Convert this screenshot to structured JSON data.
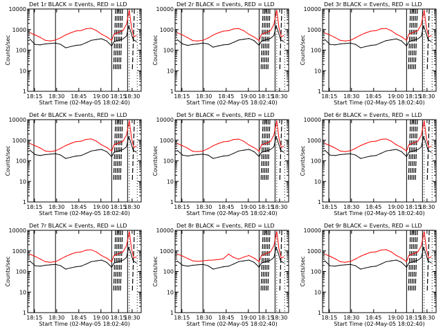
{
  "chart_data": [
    {
      "type": "line",
      "title": "Det 1r  BLACK = Events, RED = LLD",
      "xlabel": "Start Time (02-May-05 18:02:40)",
      "ylabel": "Counts/sec",
      "y_scale": "log",
      "ylim": [
        1,
        10000
      ],
      "yticks": [
        "1",
        "10",
        "100",
        "1000",
        "10000"
      ],
      "xticks": [
        "18:15",
        "18:30",
        "18:45",
        "19:00",
        "18:15",
        "18:30"
      ],
      "series": [
        {
          "name": "BLACK = Events",
          "color": "#000000",
          "x": [
            "18:02",
            "18:06",
            "18:10",
            "18:14",
            "18:18",
            "18:22",
            "18:26",
            "18:30",
            "18:34",
            "18:38",
            "18:42",
            "18:46",
            "18:50",
            "18:54",
            "18:58",
            "19:02",
            "19:06"
          ],
          "y": [
            340,
            190,
            180,
            200,
            210,
            220,
            190,
            130,
            150,
            170,
            180,
            230,
            300,
            330,
            360,
            280,
            160
          ]
        },
        {
          "name": "RED = LLD",
          "color": "#ff0000",
          "x": [
            "18:02",
            "18:06",
            "18:10",
            "18:14",
            "18:18",
            "18:22",
            "18:26",
            "18:30",
            "18:34",
            "18:38",
            "18:42",
            "18:46",
            "18:50",
            "18:54",
            "18:58",
            "19:02",
            "19:06"
          ],
          "y": [
            700,
            550,
            420,
            300,
            280,
            310,
            400,
            550,
            700,
            850,
            900,
            1100,
            1150,
            900,
            600,
            450,
            300
          ]
        }
      ]
    },
    {
      "type": "line",
      "title": "Det 2r  BLACK = Events, RED = LLD",
      "xlabel": "Start Time (02-May-05 18:02:40)",
      "ylabel": "Counts/sec",
      "y_scale": "log",
      "ylim": [
        1,
        10000
      ],
      "yticks": [
        "1",
        "10",
        "100",
        "1000",
        "10000"
      ],
      "xticks": [
        "18:15",
        "18:30",
        "18:45",
        "19:00",
        "18:15",
        "18:30"
      ],
      "series": [
        {
          "name": "BLACK = Events",
          "color": "#000000",
          "x": [
            "18:02",
            "18:06",
            "18:10",
            "18:14",
            "18:18",
            "18:22",
            "18:26",
            "18:30",
            "18:34",
            "18:38",
            "18:42",
            "18:46",
            "18:50",
            "18:54",
            "18:58",
            "19:02",
            "19:06"
          ],
          "y": [
            320,
            200,
            170,
            190,
            200,
            220,
            200,
            140,
            160,
            180,
            190,
            240,
            310,
            340,
            370,
            290,
            170
          ]
        },
        {
          "name": "RED = LLD",
          "color": "#ff0000",
          "x": [
            "18:02",
            "18:06",
            "18:10",
            "18:14",
            "18:18",
            "18:22",
            "18:26",
            "18:30",
            "18:34",
            "18:38",
            "18:42",
            "18:46",
            "18:50",
            "18:54",
            "18:58",
            "19:02",
            "19:06"
          ],
          "y": [
            700,
            540,
            410,
            290,
            280,
            300,
            390,
            540,
            690,
            840,
            880,
            1080,
            1120,
            880,
            590,
            440,
            290
          ]
        }
      ]
    },
    {
      "type": "line",
      "title": "Det 3r  BLACK = Events, RED = LLD",
      "xlabel": "Start Time (02-May-05 18:02:40)",
      "ylabel": "Counts/sec",
      "y_scale": "log",
      "ylim": [
        1,
        10000
      ],
      "yticks": [
        "1",
        "10",
        "100",
        "1000",
        "10000"
      ],
      "xticks": [
        "18:15",
        "18:30",
        "18:45",
        "19:00",
        "18:15",
        "18:30"
      ],
      "series": [
        {
          "name": "BLACK = Events",
          "color": "#000000",
          "x": [
            "18:02",
            "18:06",
            "18:10",
            "18:14",
            "18:18",
            "18:22",
            "18:26",
            "18:30",
            "18:34",
            "18:38",
            "18:42",
            "18:46",
            "18:50",
            "18:54",
            "18:58",
            "19:02",
            "19:06"
          ],
          "y": [
            330,
            190,
            180,
            200,
            210,
            220,
            190,
            130,
            150,
            170,
            180,
            230,
            290,
            320,
            350,
            280,
            160
          ]
        },
        {
          "name": "RED = LLD",
          "color": "#ff0000",
          "x": [
            "18:02",
            "18:06",
            "18:10",
            "18:14",
            "18:18",
            "18:22",
            "18:26",
            "18:30",
            "18:34",
            "18:38",
            "18:42",
            "18:46",
            "18:50",
            "18:54",
            "18:58",
            "19:02",
            "19:06"
          ],
          "y": [
            680,
            540,
            410,
            300,
            280,
            300,
            400,
            540,
            690,
            840,
            890,
            1090,
            1140,
            890,
            600,
            450,
            300
          ]
        }
      ]
    },
    {
      "type": "line",
      "title": "Det 4r  BLACK = Events, RED = LLD",
      "xlabel": "Start Time (02-May-05 18:02:40)",
      "ylabel": "Counts/sec",
      "y_scale": "log",
      "ylim": [
        1,
        10000
      ],
      "yticks": [
        "1",
        "10",
        "100",
        "1000",
        "10000"
      ],
      "xticks": [
        "18:15",
        "18:30",
        "18:45",
        "19:00",
        "18:15",
        "18:30"
      ],
      "series": [
        {
          "name": "BLACK = Events",
          "color": "#000000",
          "x": [
            "18:02",
            "18:06",
            "18:10",
            "18:14",
            "18:18",
            "18:22",
            "18:26",
            "18:30",
            "18:34",
            "18:38",
            "18:42",
            "18:46",
            "18:50",
            "18:54",
            "18:58",
            "19:02",
            "19:06"
          ],
          "y": [
            330,
            200,
            180,
            200,
            210,
            220,
            190,
            130,
            150,
            170,
            180,
            230,
            300,
            330,
            360,
            280,
            160
          ]
        },
        {
          "name": "RED = LLD",
          "color": "#ff0000",
          "x": [
            "18:02",
            "18:06",
            "18:10",
            "18:14",
            "18:18",
            "18:22",
            "18:26",
            "18:30",
            "18:34",
            "18:38",
            "18:42",
            "18:46",
            "18:50",
            "18:54",
            "18:58",
            "19:02",
            "19:06"
          ],
          "y": [
            700,
            540,
            420,
            300,
            280,
            310,
            400,
            550,
            700,
            850,
            900,
            1100,
            1150,
            900,
            600,
            450,
            300
          ]
        }
      ]
    },
    {
      "type": "line",
      "title": "Det 5r  BLACK = Events, RED = LLD",
      "xlabel": "Start Time (02-May-05 18:02:40)",
      "ylabel": "Counts/sec",
      "y_scale": "log",
      "ylim": [
        1,
        10000
      ],
      "yticks": [
        "1",
        "10",
        "100",
        "1000",
        "10000"
      ],
      "xticks": [
        "18:15",
        "18:30",
        "18:45",
        "19:00",
        "18:15",
        "18:30"
      ],
      "series": [
        {
          "name": "BLACK = Events",
          "color": "#000000",
          "x": [
            "18:02",
            "18:06",
            "18:10",
            "18:14",
            "18:18",
            "18:22",
            "18:26",
            "18:30",
            "18:34",
            "18:38",
            "18:42",
            "18:46",
            "18:50",
            "18:54",
            "18:58",
            "19:02",
            "19:06"
          ],
          "y": [
            320,
            190,
            170,
            190,
            200,
            210,
            190,
            130,
            150,
            170,
            180,
            230,
            300,
            330,
            360,
            280,
            160
          ]
        },
        {
          "name": "RED = LLD",
          "color": "#ff0000",
          "x": [
            "18:02",
            "18:06",
            "18:10",
            "18:14",
            "18:18",
            "18:22",
            "18:26",
            "18:30",
            "18:34",
            "18:38",
            "18:42",
            "18:46",
            "18:50",
            "18:54",
            "18:58",
            "19:02",
            "19:06"
          ],
          "y": [
            690,
            540,
            410,
            290,
            280,
            300,
            390,
            540,
            690,
            840,
            890,
            1090,
            1140,
            890,
            590,
            440,
            290
          ]
        }
      ]
    },
    {
      "type": "line",
      "title": "Det 6r  BLACK = Events, RED = LLD",
      "xlabel": "Start Time (02-May-05 18:02:40)",
      "ylabel": "Counts/sec",
      "y_scale": "log",
      "ylim": [
        1,
        10000
      ],
      "yticks": [
        "1",
        "10",
        "100",
        "1000",
        "10000"
      ],
      "xticks": [
        "18:15",
        "18:30",
        "18:45",
        "19:00",
        "18:15",
        "18:30"
      ],
      "series": [
        {
          "name": "BLACK = Events",
          "color": "#000000",
          "x": [
            "18:02",
            "18:06",
            "18:10",
            "18:14",
            "18:18",
            "18:22",
            "18:26",
            "18:30",
            "18:34",
            "18:38",
            "18:42",
            "18:46",
            "18:50",
            "18:54",
            "18:58",
            "19:02",
            "19:06"
          ],
          "y": [
            330,
            190,
            180,
            200,
            210,
            220,
            190,
            130,
            150,
            170,
            180,
            230,
            300,
            330,
            360,
            280,
            160
          ]
        },
        {
          "name": "RED = LLD",
          "color": "#ff0000",
          "x": [
            "18:02",
            "18:06",
            "18:10",
            "18:14",
            "18:18",
            "18:22",
            "18:26",
            "18:30",
            "18:34",
            "18:38",
            "18:42",
            "18:46",
            "18:50",
            "18:54",
            "18:58",
            "19:02",
            "19:06"
          ],
          "y": [
            700,
            550,
            420,
            300,
            280,
            310,
            400,
            550,
            700,
            850,
            900,
            1100,
            1150,
            900,
            600,
            450,
            300
          ]
        }
      ]
    },
    {
      "type": "line",
      "title": "Det 7r  BLACK = Events, RED = LLD",
      "xlabel": "Start Time (02-May-05 18:02:40)",
      "ylabel": "Counts/sec",
      "y_scale": "log",
      "ylim": [
        1,
        10000
      ],
      "yticks": [
        "1",
        "10",
        "100",
        "1000",
        "10000"
      ],
      "xticks": [
        "18:15",
        "18:30",
        "18:45",
        "19:00",
        "18:15",
        "18:30"
      ],
      "series": [
        {
          "name": "BLACK = Events",
          "color": "#000000",
          "x": [
            "18:02",
            "18:06",
            "18:10",
            "18:14",
            "18:18",
            "18:22",
            "18:26",
            "18:30",
            "18:34",
            "18:38",
            "18:42",
            "18:46",
            "18:50",
            "18:54",
            "18:58",
            "19:02",
            "19:06"
          ],
          "y": [
            320,
            190,
            180,
            200,
            210,
            220,
            190,
            130,
            150,
            170,
            180,
            230,
            300,
            330,
            360,
            280,
            160
          ]
        },
        {
          "name": "RED = LLD",
          "color": "#ff0000",
          "x": [
            "18:02",
            "18:06",
            "18:10",
            "18:14",
            "18:18",
            "18:22",
            "18:26",
            "18:30",
            "18:34",
            "18:38",
            "18:42",
            "18:46",
            "18:50",
            "18:54",
            "18:58",
            "19:02",
            "19:06"
          ],
          "y": [
            690,
            540,
            410,
            300,
            280,
            300,
            400,
            540,
            690,
            840,
            890,
            1090,
            1140,
            890,
            600,
            450,
            300
          ]
        }
      ]
    },
    {
      "type": "line",
      "title": "Det 8r  BLACK = Events, RED = LLD",
      "xlabel": "Start Time (02-May-05 18:02:40)",
      "ylabel": "Counts/sec",
      "y_scale": "log",
      "ylim": [
        1,
        10000
      ],
      "yticks": [
        "1",
        "10",
        "100",
        "1000",
        "10000"
      ],
      "xticks": [
        "18:15",
        "18:30",
        "18:45",
        "19:00",
        "18:15",
        "18:30"
      ],
      "series": [
        {
          "name": "BLACK = Events",
          "color": "#000000",
          "x": [
            "18:02",
            "18:06",
            "18:10",
            "18:14",
            "18:18",
            "18:22",
            "18:26",
            "18:30",
            "18:34",
            "18:38",
            "18:42",
            "18:46",
            "18:50",
            "18:54",
            "18:58",
            "19:02",
            "19:06"
          ],
          "y": [
            320,
            200,
            180,
            200,
            210,
            220,
            190,
            130,
            150,
            170,
            180,
            230,
            300,
            330,
            360,
            280,
            160
          ]
        },
        {
          "name": "RED = LLD",
          "color": "#ff0000",
          "x": [
            "18:02",
            "18:06",
            "18:10",
            "18:14",
            "18:18",
            "18:22",
            "18:26",
            "18:30",
            "18:34",
            "18:38",
            "18:42",
            "18:46",
            "18:50",
            "18:54",
            "18:58",
            "19:02",
            "19:06"
          ],
          "y": [
            700,
            560,
            430,
            330,
            310,
            330,
            350,
            360,
            380,
            420,
            700,
            480,
            400,
            500,
            600,
            450,
            300
          ]
        }
      ]
    },
    {
      "type": "line",
      "title": "Det 9r  BLACK = Events, RED = LLD",
      "xlabel": "Start Time (02-May-05 18:02:40)",
      "ylabel": "Counts/sec",
      "y_scale": "log",
      "ylim": [
        1,
        10000
      ],
      "yticks": [
        "1",
        "10",
        "100",
        "1000",
        "10000"
      ],
      "xticks": [
        "18:15",
        "18:30",
        "18:45",
        "19:00",
        "18:15",
        "18:30"
      ],
      "series": [
        {
          "name": "BLACK = Events",
          "color": "#000000",
          "x": [
            "18:02",
            "18:06",
            "18:10",
            "18:14",
            "18:18",
            "18:22",
            "18:26",
            "18:30",
            "18:34",
            "18:38",
            "18:42",
            "18:46",
            "18:50",
            "18:54",
            "18:58",
            "19:02",
            "19:06"
          ],
          "y": [
            330,
            190,
            180,
            200,
            210,
            220,
            190,
            130,
            150,
            170,
            180,
            230,
            300,
            330,
            360,
            280,
            160
          ]
        },
        {
          "name": "RED = LLD",
          "color": "#ff0000",
          "x": [
            "18:02",
            "18:06",
            "18:10",
            "18:14",
            "18:18",
            "18:22",
            "18:26",
            "18:30",
            "18:34",
            "18:38",
            "18:42",
            "18:46",
            "18:50",
            "18:54",
            "18:58",
            "19:02",
            "19:06"
          ],
          "y": [
            700,
            550,
            420,
            300,
            280,
            310,
            400,
            550,
            700,
            850,
            900,
            1100,
            1150,
            900,
            600,
            450,
            300
          ]
        }
      ]
    }
  ]
}
